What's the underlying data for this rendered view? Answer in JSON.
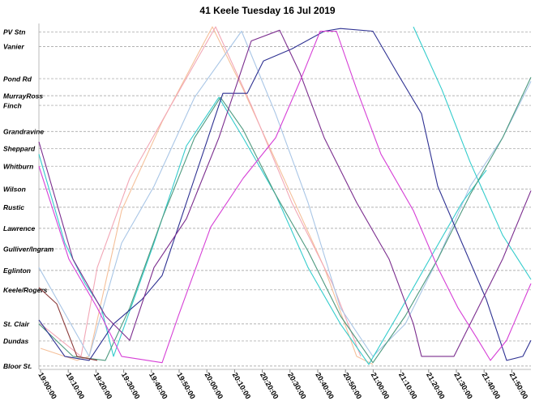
{
  "chart_data": {
    "type": "line",
    "title": "41 Keele Tuesday 16 Jul 2019",
    "xlim": [
      "18:59:25",
      "21:56:54"
    ],
    "xticks": [
      "19:00:00",
      "19:10:00",
      "19:20:00",
      "19:30:00",
      "19:40:00",
      "19:50:00",
      "20:00:00",
      "20:10:00",
      "20:20:00",
      "20:30:00",
      "20:40:00",
      "20:50:00",
      "21:00:00",
      "21:10:00",
      "21:20:00",
      "21:30:00",
      "21:40:00",
      "21:50:00"
    ],
    "ylim": [
      -1,
      102.5
    ],
    "yticks": [
      {
        "value": 100,
        "label": "PV Stn"
      },
      {
        "value": 95.6,
        "label": "Vanier"
      },
      {
        "value": 86.0,
        "label": "Pond Rd"
      },
      {
        "value": 80.9,
        "label": "MurrayRoss"
      },
      {
        "value": 78.0,
        "label": "Finch"
      },
      {
        "value": 70.2,
        "label": "Grandravine"
      },
      {
        "value": 65.1,
        "label": "Sheppard"
      },
      {
        "value": 59.8,
        "label": "Whitburn"
      },
      {
        "value": 53.0,
        "label": "Wilson"
      },
      {
        "value": 47.5,
        "label": "Rustic"
      },
      {
        "value": 41.2,
        "label": "Lawrence"
      },
      {
        "value": 35.1,
        "label": "Gulliver/Ingram"
      },
      {
        "value": 28.6,
        "label": "Eglinton"
      },
      {
        "value": 22.8,
        "label": "Keele/Rogers"
      },
      {
        "value": 12.6,
        "label": "St. Clair"
      },
      {
        "value": 7.5,
        "label": "Dundas"
      },
      {
        "value": 0,
        "label": "Bloor St."
      }
    ],
    "grid": true,
    "series": [
      {
        "color": "#f5c09a",
        "x": [
          "19:00:00",
          "19:13:10",
          "19:17:33",
          "19:29:14",
          "19:43:51",
          "20:01:59",
          "20:13:06",
          "20:27:43",
          "20:42:20",
          "20:54:02",
          "20:59:53"
        ],
        "values": [
          5.3,
          1.7,
          2.9,
          46.5,
          73.1,
          101.5,
          82.8,
          56.2,
          29.5,
          2.9,
          0.5
        ]
      },
      {
        "color": "#f2a7b6",
        "x": [
          "19:00:00",
          "19:14:37",
          "19:20:28",
          "19:32:10",
          "19:45:19",
          "20:03:09",
          "20:16:01",
          "20:30:38",
          "20:45:16",
          "20:55:30"
        ],
        "values": [
          12.6,
          2.9,
          29.5,
          56.2,
          75.5,
          101.5,
          78.0,
          48.9,
          24.7,
          2.9
        ]
      },
      {
        "color": "#a9c6e6",
        "x": [
          "18:59:25",
          "19:17:33",
          "19:29:14",
          "19:40:56",
          "19:55:33",
          "20:12:31",
          "20:24:48",
          "20:36:29",
          "20:48:11",
          "20:59:53",
          "21:11:35",
          "21:23:16",
          "21:34:58",
          "21:46:40",
          "21:56:54"
        ],
        "values": [
          29.5,
          2.9,
          36.8,
          53.8,
          80.4,
          100.2,
          75.5,
          48.9,
          17.4,
          2.9,
          12.6,
          32.0,
          53.8,
          68.3,
          85.2
        ]
      },
      {
        "color": "#33cccc",
        "x": [
          "18:59:25",
          "19:08:46",
          "19:16:05",
          "19:21:56",
          "19:26:19",
          "19:40:56",
          "19:52:38",
          "20:04:20",
          "20:13:06",
          "20:24:48",
          "20:36:29",
          "20:48:11",
          "20:58:25",
          "21:08:39",
          "21:20:21",
          "21:32:03",
          "21:40:49"
        ],
        "values": [
          63.4,
          36.8,
          24.7,
          17.4,
          2.9,
          36.8,
          65.9,
          80.4,
          68.3,
          51.3,
          29.5,
          12.6,
          0.5,
          15.0,
          32.0,
          48.9,
          58.6
        ]
      },
      {
        "color": "#33cccc",
        "x": [
          "21:14:30",
          "21:24:44",
          "21:34:58",
          "21:46:40",
          "21:56:54"
        ],
        "values": [
          101.5,
          82.8,
          61.0,
          39.2,
          25.9
        ]
      },
      {
        "color": "#4e9a7f",
        "x": [
          "18:59:25",
          "19:11:42",
          "19:23:23",
          "19:32:10",
          "19:43:51",
          "19:55:33",
          "20:04:55",
          "20:13:06",
          "20:24:48",
          "20:36:29",
          "20:48:11",
          "20:59:53",
          "21:11:35",
          "21:23:16",
          "21:34:58",
          "21:46:40",
          "21:56:54"
        ],
        "values": [
          12.6,
          2.9,
          1.7,
          17.4,
          44.1,
          68.3,
          80.4,
          70.7,
          51.3,
          34.4,
          15.0,
          1.0,
          15.0,
          32.0,
          51.3,
          68.3,
          86.4
        ]
      },
      {
        "color": "#2e3192",
        "x": [
          "18:59:25",
          "19:08:46",
          "19:17:33",
          "19:26:19",
          "19:36:33",
          "19:43:51",
          "19:55:33",
          "20:05:47",
          "20:14:34",
          "20:20:25",
          "20:30:38",
          "20:42:20",
          "20:48:11",
          "20:59:53",
          "21:08:39",
          "21:17:26",
          "21:23:16",
          "21:32:03",
          "21:40:49",
          "21:48:08",
          "21:53:59",
          "21:56:54"
        ],
        "values": [
          13.8,
          2.9,
          1.7,
          12.6,
          19.9,
          27.1,
          56.2,
          81.6,
          81.6,
          91.3,
          94.9,
          100.2,
          101.0,
          100.2,
          87.7,
          75.5,
          53.8,
          36.8,
          19.9,
          1.7,
          2.9,
          7.7
        ]
      },
      {
        "color": "#7b2d8e",
        "x": [
          "18:59:25",
          "19:11:42",
          "19:23:23",
          "19:32:10",
          "19:40:56",
          "19:52:38",
          "20:04:20",
          "20:13:06",
          "20:16:01",
          "20:26:15",
          "20:33:34",
          "20:42:20",
          "20:54:02",
          "21:05:44",
          "21:14:30",
          "21:17:26",
          "21:29:07",
          "21:34:58",
          "21:46:40",
          "21:56:54"
        ],
        "values": [
          67.1,
          32.0,
          15.0,
          7.7,
          29.5,
          44.1,
          68.3,
          90.1,
          97.3,
          100.5,
          87.7,
          68.3,
          48.9,
          32.0,
          12.6,
          2.9,
          2.9,
          12.6,
          32.0,
          52.5
        ]
      },
      {
        "color": "#d63fd6",
        "x": [
          "18:59:25",
          "19:10:14",
          "19:20:28",
          "19:29:14",
          "19:43:51",
          "19:49:42",
          "20:01:24",
          "20:13:06",
          "20:24:48",
          "20:33:34",
          "20:40:53",
          "20:46:44",
          "20:54:02",
          "21:02:48",
          "21:14:30",
          "21:23:16",
          "21:30:35",
          "21:37:53",
          "21:42:17",
          "21:48:08",
          "21:56:54"
        ],
        "values": [
          59.8,
          32.0,
          17.4,
          2.9,
          1.0,
          15.0,
          41.6,
          56.2,
          68.3,
          85.2,
          100.2,
          100.2,
          82.8,
          63.4,
          46.5,
          29.5,
          17.4,
          7.7,
          1.7,
          7.7,
          24.7
        ]
      },
      {
        "color": "#8b3a3a",
        "x": [
          "18:59:25",
          "19:05:51",
          "19:13:10",
          "19:20:28"
        ],
        "values": [
          23.5,
          18.6,
          2.9,
          1.7
        ]
      }
    ]
  }
}
